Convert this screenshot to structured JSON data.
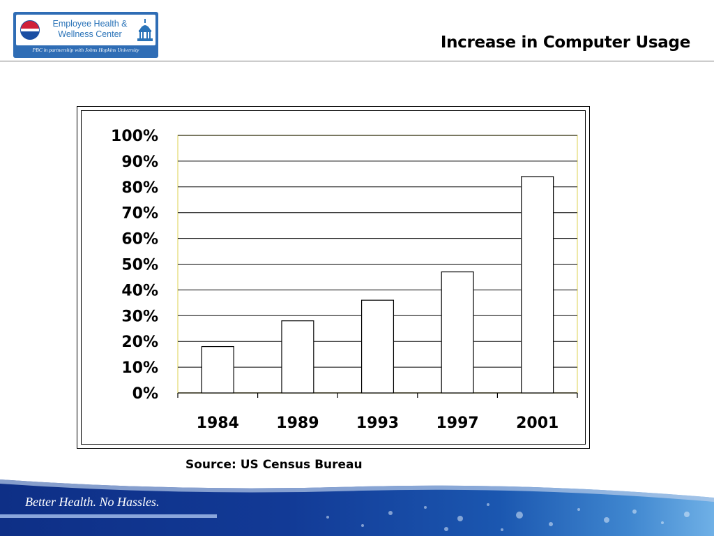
{
  "logo": {
    "line1": "Employee Health &",
    "line2": "Wellness Center",
    "tagline": "PBC in partnership with Johns Hopkins University"
  },
  "page": {
    "title": "Increase in Computer Usage",
    "source": "Source: US Census Bureau",
    "footer_text": "Better Health.  No Hassles."
  },
  "colors": {
    "bar_fill": "#ffffff",
    "bar_stroke": "#000000",
    "grid": "#000000",
    "plot_border": "#e8e08a",
    "footer_blue": "#123a96"
  },
  "chart_data": {
    "type": "bar",
    "categories": [
      "1984",
      "1989",
      "1993",
      "1997",
      "2001"
    ],
    "values": [
      18,
      28,
      36,
      47,
      84
    ],
    "value_unit": "%",
    "title": "",
    "xlabel": "",
    "ylabel": "",
    "ylim": [
      0,
      100
    ],
    "yticks": [
      "0%",
      "10%",
      "20%",
      "30%",
      "40%",
      "50%",
      "60%",
      "70%",
      "80%",
      "90%",
      "100%"
    ],
    "grid": true,
    "legend": "none"
  }
}
